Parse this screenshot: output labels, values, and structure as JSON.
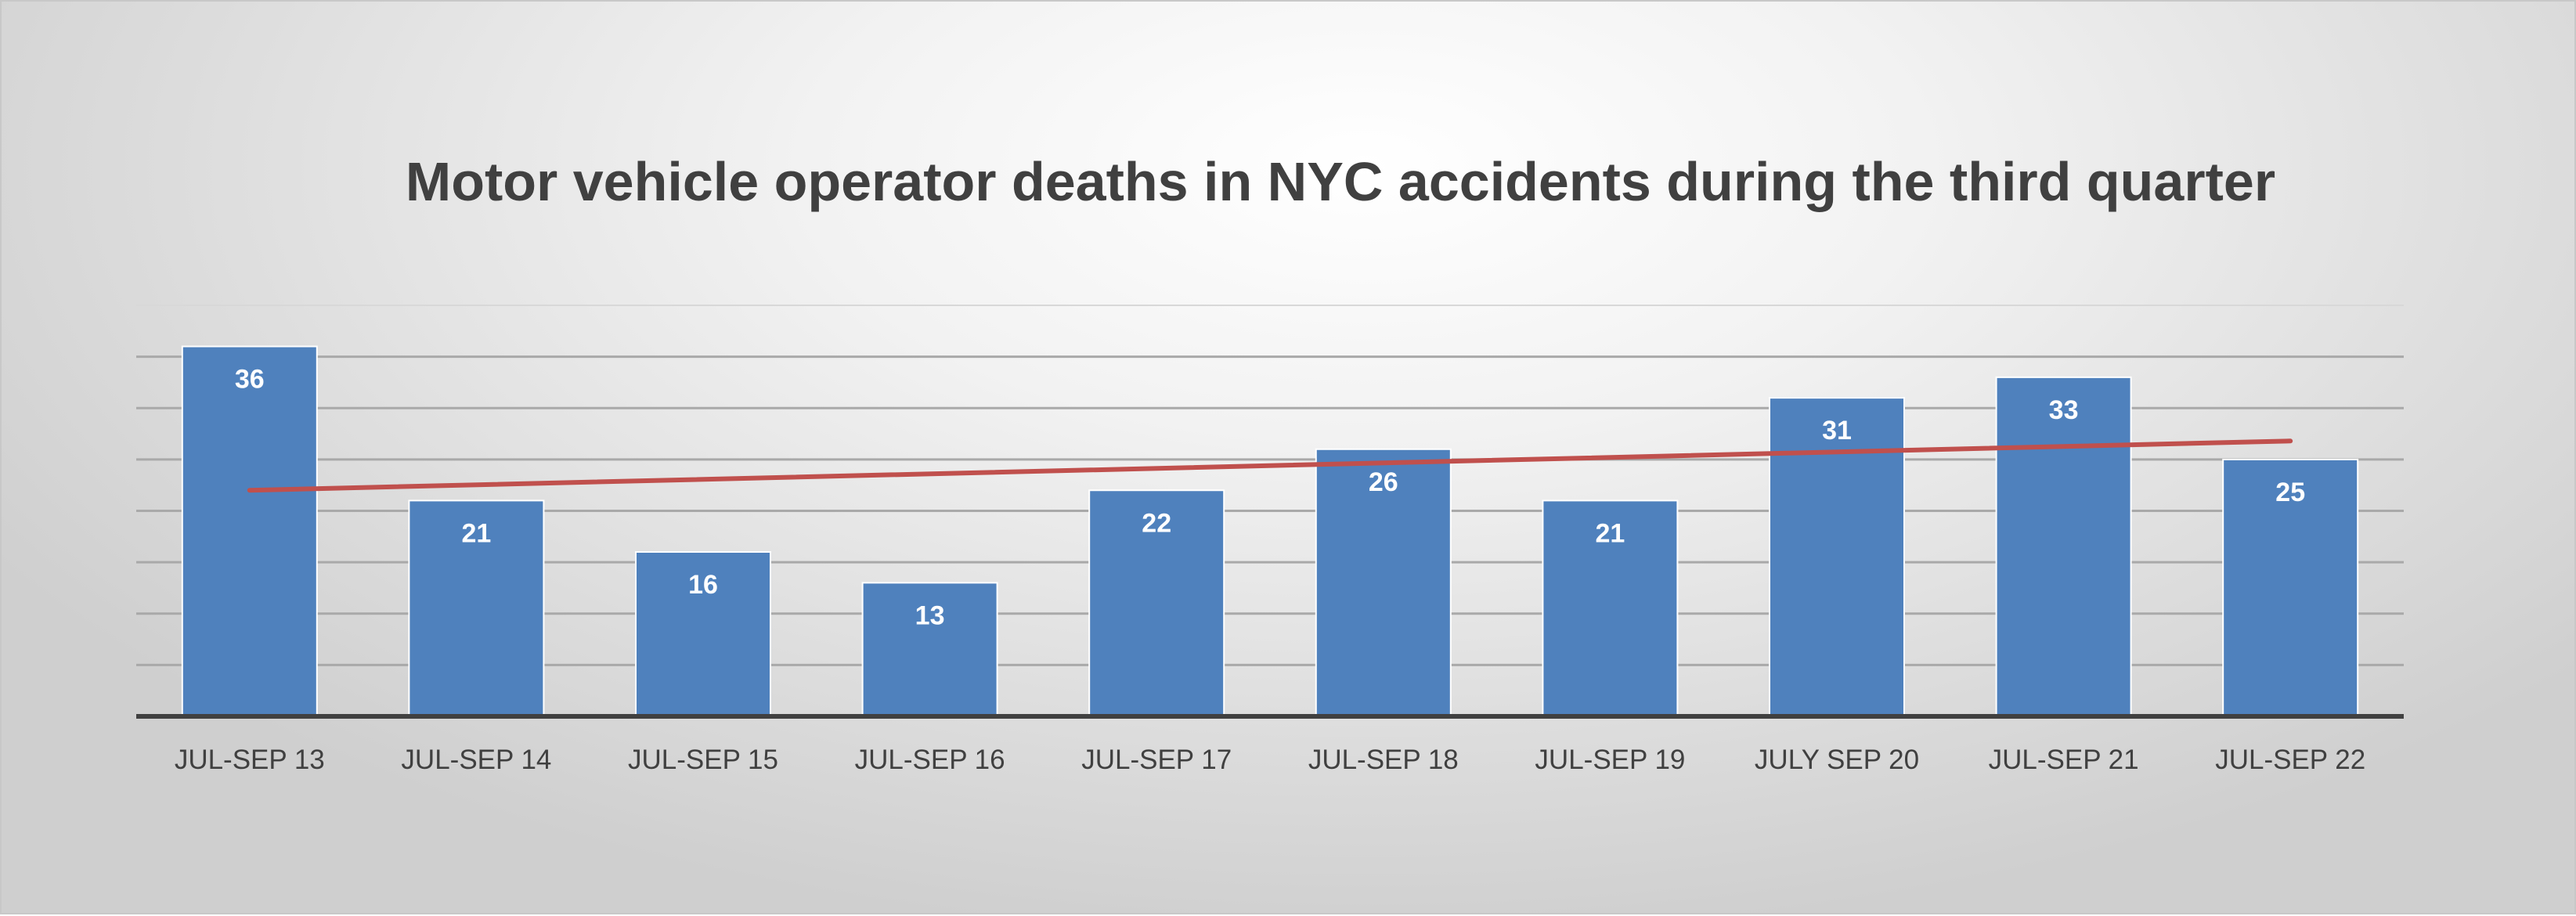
{
  "chart_data": {
    "type": "bar",
    "title": "Motor vehicle operator deaths in NYC accidents during the third quarter",
    "xlabel": "",
    "ylabel": "",
    "categories": [
      "JUL-SEP 13",
      "JUL-SEP 14",
      "JUL-SEP 15",
      "JUL-SEP 16",
      "JUL-SEP 17",
      "JUL-SEP 18",
      "JUL-SEP 19",
      "JULY SEP 20",
      "JUL-SEP 21",
      "JUL-SEP 22"
    ],
    "series": [
      {
        "values": [
          36,
          21,
          16,
          13,
          22,
          26,
          21,
          31,
          33,
          25
        ],
        "color": "#4f81bd",
        "data_labels": true
      }
    ],
    "trendline": {
      "type": "linear",
      "color": "#c0504d"
    },
    "ylim": [
      0,
      40
    ],
    "y_axis_visible": false,
    "grid": true,
    "legend": "none"
  }
}
